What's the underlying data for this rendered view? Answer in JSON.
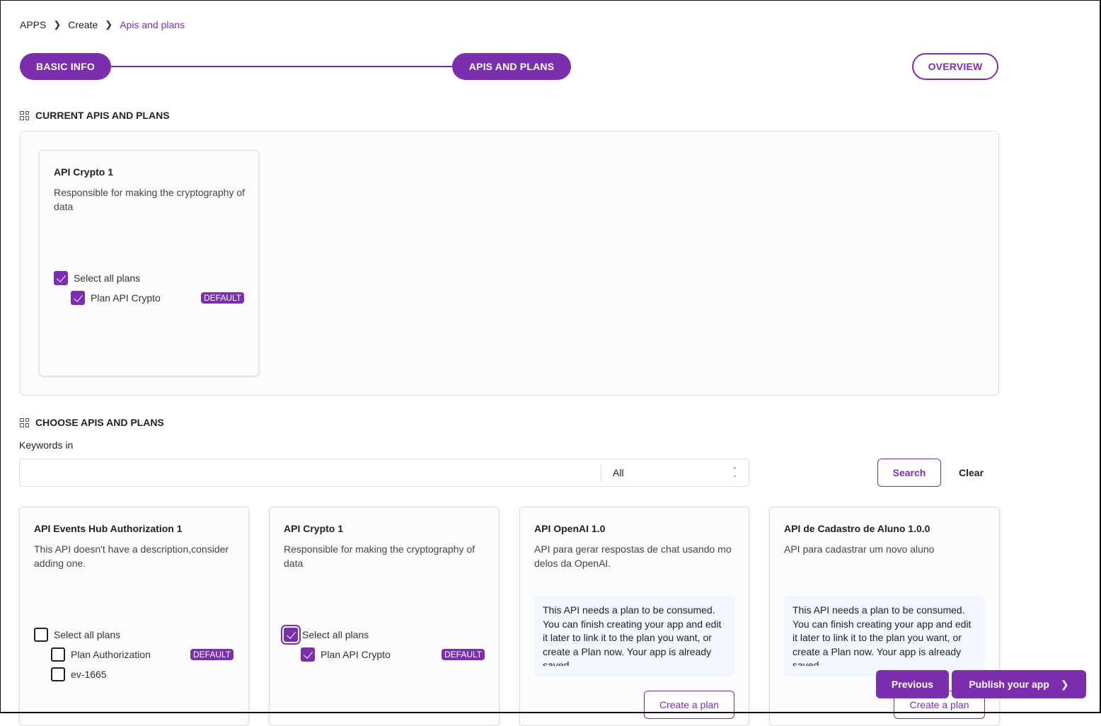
{
  "breadcrumb": [
    "APPS",
    "Create",
    "Apis and plans"
  ],
  "steps": {
    "basic": "BASIC INFO",
    "apis": "APIS AND PLANS",
    "overview": "OVERVIEW"
  },
  "current": {
    "title": "CURRENT APIS AND PLANS",
    "card": {
      "name": "API Crypto 1",
      "description": "Responsible for making the cryptography of data",
      "select_all": "Select all plans",
      "plans": [
        {
          "name": "Plan API Crypto",
          "badge": "DEFAULT",
          "checked": true
        }
      ]
    }
  },
  "choose": {
    "title": "CHOOSE APIS AND PLANS",
    "keywords_label": "Keywords in",
    "search_value": "",
    "filter": "All",
    "search_btn": "Search",
    "clear_btn": "Clear",
    "cards": [
      {
        "name": "API Events Hub Authorization 1",
        "description": "This API doesn't have a description,consider adding one.",
        "select_all": "Select all plans",
        "plans": [
          {
            "name": "Plan Authorization",
            "badge": "DEFAULT"
          },
          {
            "name": "ev-1665"
          }
        ]
      },
      {
        "name": "API Crypto 1",
        "description": "Responsible for making the cryptography of data",
        "select_all": "Select all plans",
        "plans": [
          {
            "name": "Plan API Crypto",
            "badge": "DEFAULT"
          }
        ]
      },
      {
        "name": "API OpenAI 1.0",
        "description": "API para gerar respostas de chat usando mo delos da OpenAI.",
        "info": "This API needs a plan to be consumed. You can finish creating your app and edit it later to link it to the plan you want, or create a Plan now. Your app is already saved",
        "create": "Create a plan"
      },
      {
        "name": "API de Cadastro de Aluno 1.0.0",
        "description": "API para cadastrar um novo aluno",
        "info": "This API needs a plan to be consumed. You can finish creating your app and edit it later to link it to the plan you want, or create a Plan now. Your app is already saved",
        "create": "Create a plan"
      }
    ]
  },
  "footer": {
    "previous": "Previous",
    "publish": "Publish your app"
  },
  "colors": {
    "accent": "#7b2fae"
  }
}
